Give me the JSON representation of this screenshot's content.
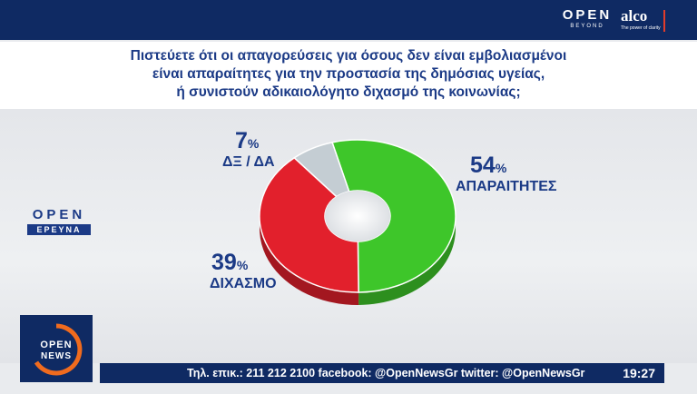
{
  "header": {
    "open_brand": "OPEN",
    "open_sub": "BEYOND",
    "alco": "alco",
    "alco_sub": "The power of clarity"
  },
  "question": {
    "lines": [
      "Πιστεύετε ότι οι απαγορεύσεις για όσους δεν είναι εμβολιασμένοι",
      "είναι απαραίτητες για την προστασία της δημόσιας υγείας,",
      "ή συνιστούν αδικαιολόγητο διχασμό της κοινωνίας;"
    ]
  },
  "chart_data": {
    "type": "pie",
    "title": "",
    "unit": "%",
    "slices": [
      {
        "label": "ΑΠΑΡΑΙΤΗΤΕΣ",
        "value": 54,
        "color": "#3ec62a"
      },
      {
        "label": "ΔΙΧΑΣΜΟ",
        "value": 39,
        "color": "#e2202c"
      },
      {
        "label": "ΔΞ / ΔΑ",
        "value": 7,
        "color": "#c4cdd3"
      }
    ],
    "donut": true
  },
  "labels": {
    "apa_num": "54",
    "apa_unit": "%",
    "apa_lbl": "ΑΠΑΡΑΙΤΗΤΕΣ",
    "dix_num": "39",
    "dix_unit": "%",
    "dix_lbl": "ΔΙΧΑΣΜΟ",
    "dk_num": "7",
    "dk_unit": "%",
    "dk_lbl": "ΔΞ / ΔΑ"
  },
  "logo": {
    "open": "OPEN",
    "badge": "ΕΡΕΥΝΑ",
    "news_top": "OPEN",
    "news_bottom": "NEWS"
  },
  "ticker": {
    "text": "Τηλ. επικ.: 211 212 2100 facebook: @OpenNewsGr twitter: @OpenNewsGr",
    "time": "19:27"
  }
}
